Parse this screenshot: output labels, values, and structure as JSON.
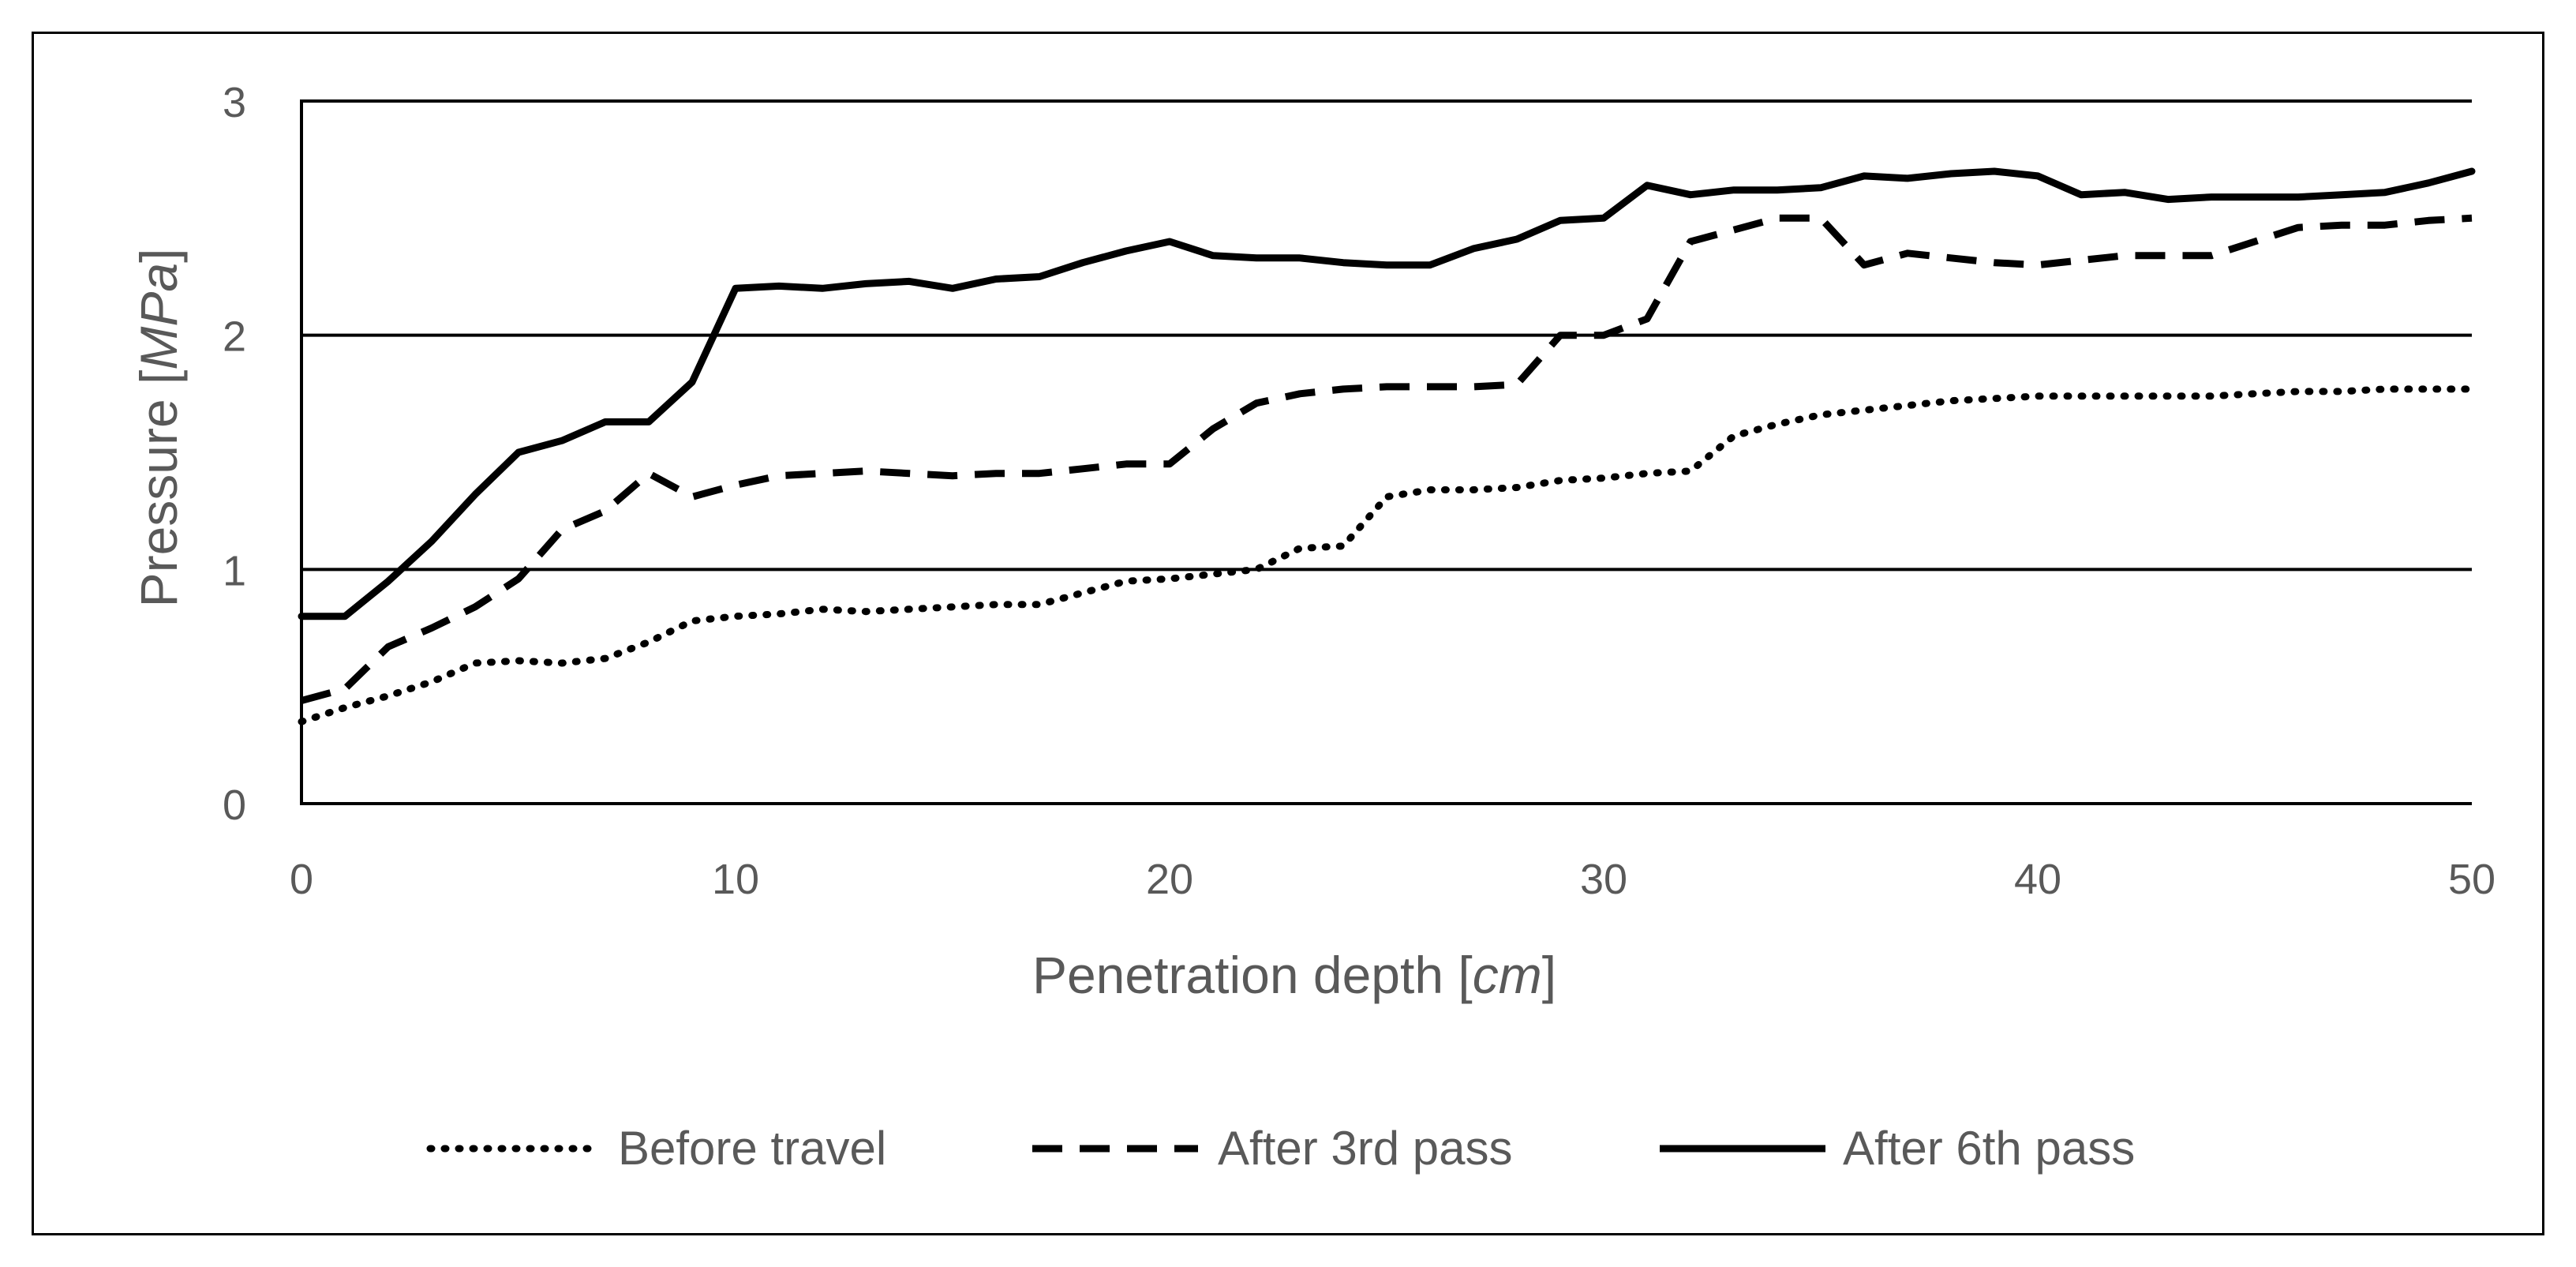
{
  "chart_data": {
    "type": "line",
    "xlabel": {
      "main": "Penetration depth [",
      "unit": "cm",
      "close": "]"
    },
    "ylabel": {
      "main": "Pressure [",
      "unit": "MPa",
      "close": "]"
    },
    "xlim": [
      0,
      50
    ],
    "ylim": [
      0,
      3
    ],
    "x_ticks": [
      0,
      10,
      20,
      30,
      40,
      50
    ],
    "y_ticks": [
      0,
      1,
      2,
      3
    ],
    "grid": "horizontal",
    "legend_position": "bottom",
    "x": [
      0,
      1,
      2,
      3,
      4,
      5,
      6,
      7,
      8,
      9,
      10,
      11,
      12,
      13,
      14,
      15,
      16,
      17,
      18,
      19,
      20,
      21,
      22,
      23,
      24,
      25,
      26,
      27,
      28,
      29,
      30,
      31,
      32,
      33,
      34,
      35,
      36,
      37,
      38,
      39,
      40,
      41,
      42,
      43,
      44,
      45,
      46,
      47,
      48,
      49,
      50
    ],
    "series": [
      {
        "name": "Before travel",
        "style": "dotted",
        "values": [
          0.35,
          0.41,
          0.46,
          0.52,
          0.6,
          0.61,
          0.6,
          0.62,
          0.69,
          0.78,
          0.8,
          0.81,
          0.83,
          0.82,
          0.83,
          0.84,
          0.85,
          0.85,
          0.9,
          0.95,
          0.96,
          0.98,
          1.0,
          1.09,
          1.1,
          1.31,
          1.34,
          1.34,
          1.35,
          1.38,
          1.39,
          1.41,
          1.42,
          1.57,
          1.62,
          1.66,
          1.68,
          1.7,
          1.72,
          1.73,
          1.74,
          1.74,
          1.74,
          1.74,
          1.74,
          1.75,
          1.76,
          1.76,
          1.77,
          1.77,
          1.77
        ]
      },
      {
        "name": "After 3rd pass",
        "style": "dashed",
        "values": [
          0.44,
          0.49,
          0.67,
          0.75,
          0.84,
          0.96,
          1.17,
          1.25,
          1.41,
          1.31,
          1.36,
          1.4,
          1.41,
          1.42,
          1.41,
          1.4,
          1.41,
          1.41,
          1.43,
          1.45,
          1.45,
          1.6,
          1.71,
          1.75,
          1.77,
          1.78,
          1.78,
          1.78,
          1.79,
          2.0,
          2.0,
          2.07,
          2.4,
          2.45,
          2.5,
          2.5,
          2.3,
          2.35,
          2.33,
          2.31,
          2.3,
          2.32,
          2.34,
          2.34,
          2.34,
          2.4,
          2.46,
          2.47,
          2.47,
          2.49,
          2.5
        ]
      },
      {
        "name": "After 6th pass",
        "style": "solid",
        "values": [
          0.8,
          0.8,
          0.95,
          1.12,
          1.32,
          1.5,
          1.55,
          1.63,
          1.63,
          1.8,
          2.2,
          2.21,
          2.2,
          2.22,
          2.23,
          2.2,
          2.24,
          2.25,
          2.31,
          2.36,
          2.4,
          2.34,
          2.33,
          2.33,
          2.31,
          2.3,
          2.3,
          2.37,
          2.41,
          2.49,
          2.5,
          2.64,
          2.6,
          2.62,
          2.62,
          2.63,
          2.68,
          2.67,
          2.69,
          2.7,
          2.68,
          2.6,
          2.61,
          2.58,
          2.59,
          2.59,
          2.59,
          2.6,
          2.61,
          2.65,
          2.7
        ]
      }
    ]
  }
}
